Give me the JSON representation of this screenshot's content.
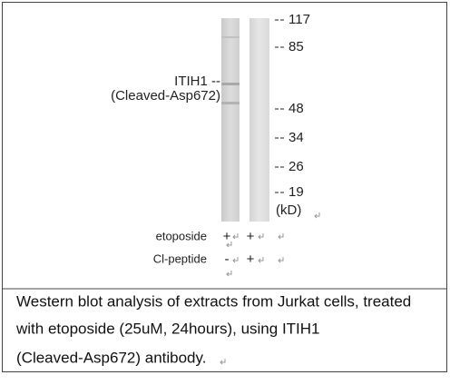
{
  "blot": {
    "markers": [
      117,
      85,
      48,
      34,
      26,
      19
    ],
    "marker_unit": "(kD)",
    "band_label": [
      "ITIH1 --",
      "(Cleaved-Asp672)"
    ],
    "conditions": [
      {
        "label": "etoposide",
        "lanes": [
          "+",
          "+"
        ]
      },
      {
        "label": "Cl-peptide",
        "lanes": [
          "-",
          "+"
        ]
      }
    ]
  },
  "caption": [
    "Western blot analysis of extracts from Jurkat cells, treated",
    "with etoposide (25uM, 24hours), using ITIH1",
    "(Cleaved-Asp672) antibody."
  ]
}
